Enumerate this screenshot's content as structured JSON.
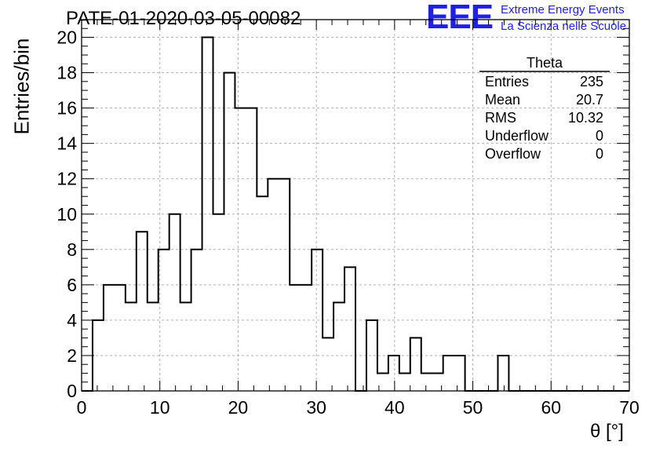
{
  "chart_data": {
    "type": "bar",
    "title": "PATE-01-2020-03-05-00082",
    "xlabel": "θ [°]",
    "ylabel": "Entries/bin",
    "xlim": [
      0,
      70
    ],
    "ylim": [
      0,
      21
    ],
    "xticks": [
      "0",
      "10",
      "20",
      "30",
      "40",
      "50",
      "60",
      "70"
    ],
    "yticks": [
      "0",
      "2",
      "4",
      "6",
      "8",
      "10",
      "12",
      "14",
      "16",
      "18",
      "20"
    ],
    "grid": true,
    "bin_width": 1.4,
    "bin_edges_start": 0,
    "values": [
      0,
      4,
      6,
      6,
      5,
      9,
      5,
      8,
      10,
      5,
      8,
      20,
      10,
      18,
      16,
      16,
      11,
      12,
      12,
      6,
      6,
      8,
      3,
      5,
      7,
      0,
      4,
      1,
      2,
      1,
      3,
      1,
      1,
      2,
      2,
      0,
      0,
      0,
      2,
      0,
      0,
      0,
      0,
      0,
      0,
      0,
      0,
      0,
      0,
      0
    ],
    "line_color": "#000000",
    "stats_box": {
      "title": "Theta",
      "rows": [
        {
          "label": "Entries",
          "value": "235"
        },
        {
          "label": "Mean",
          "value": "20.7"
        },
        {
          "label": "RMS",
          "value": "10.32"
        },
        {
          "label": "Underflow",
          "value": "0"
        },
        {
          "label": "Overflow",
          "value": "0"
        }
      ]
    }
  },
  "logo": {
    "mark": "EEE",
    "line1": "Extreme Energy Events",
    "line2": "La Scienza nelle Scuole",
    "color": "#1f1fe6"
  }
}
